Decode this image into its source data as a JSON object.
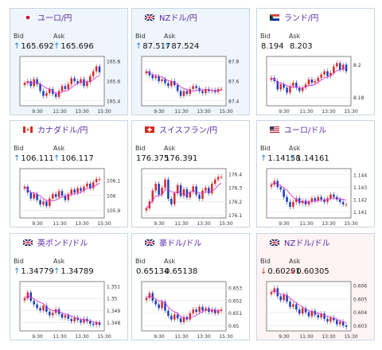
{
  "tiles": [
    {
      "flag": "jp",
      "title": "ユーロ/円",
      "bid_label": "Bid",
      "ask_label": "Ask",
      "bid": "165.692",
      "ask": "165.696",
      "arrow": "↑",
      "arrow_color": "#1a7fd4",
      "y_ticks": [
        "165.8",
        "165.6",
        "165.4"
      ],
      "x_ticks": [
        "9:30",
        "11:30",
        "13:30",
        "15:30"
      ],
      "bg": "#eef5fc",
      "chart_data": {
        "type": "candlestick",
        "ylim": [
          165.35,
          165.85
        ],
        "ticks": [
          165.8,
          165.6,
          165.4
        ],
        "close": [
          165.58,
          165.6,
          165.55,
          165.62,
          165.57,
          165.5,
          165.45,
          165.48,
          165.52,
          165.47,
          165.44,
          165.5,
          165.55,
          165.52,
          165.57,
          165.63,
          165.6,
          165.58,
          165.62,
          165.55,
          165.59,
          165.65,
          165.7,
          165.75,
          165.69
        ]
      }
    },
    {
      "flag": "nz",
      "title": "NZドル/円",
      "bid_label": "Bid",
      "ask_label": "Ask",
      "bid": "87.517",
      "ask": "87.524",
      "arrow": "↑",
      "arrow_color": "#1a7fd4",
      "y_ticks": [
        "87.8",
        "87.6",
        "87.4"
      ],
      "x_ticks": [
        "9:30",
        "11:30",
        "13:30",
        "15:30"
      ],
      "bg": "#eef5fc",
      "chart_data": {
        "type": "candlestick",
        "ylim": [
          87.35,
          87.85
        ],
        "ticks": [
          87.8,
          87.6,
          87.4
        ],
        "close": [
          87.7,
          87.66,
          87.63,
          87.65,
          87.6,
          87.62,
          87.58,
          87.55,
          87.6,
          87.56,
          87.5,
          87.45,
          87.5,
          87.47,
          87.52,
          87.55,
          87.53,
          87.5,
          87.48,
          87.52,
          87.5,
          87.51,
          87.49,
          87.52,
          87.52
        ]
      }
    },
    {
      "flag": "za",
      "title": "ランド/円",
      "bid_label": "Bid",
      "ask_label": "Ask",
      "bid": "8.194",
      "ask": "8.203",
      "arrow": "",
      "arrow_color": "#1a7fd4",
      "y_ticks": [
        "8.2",
        "8.18"
      ],
      "x_ticks": [
        "9:30",
        "11:30",
        "13:30",
        "15:30"
      ],
      "bg": "#ffffff",
      "chart_data": {
        "type": "candlestick",
        "ylim": [
          8.175,
          8.205
        ],
        "ticks": [
          8.2,
          8.18
        ],
        "close": [
          8.192,
          8.19,
          8.185,
          8.188,
          8.186,
          8.183,
          8.187,
          8.189,
          8.186,
          8.184,
          8.186,
          8.188,
          8.191,
          8.189,
          8.19,
          8.192,
          8.194,
          8.196,
          8.193,
          8.195,
          8.199,
          8.201,
          8.197,
          8.2,
          8.196
        ]
      }
    },
    {
      "flag": "ca",
      "title": "カナダドル/円",
      "bid_label": "Bid",
      "ask_label": "Ask",
      "bid": "106.111",
      "ask": "106.117",
      "arrow": "↑",
      "arrow_color": "#1a7fd4",
      "y_ticks": [
        "106.1",
        "106",
        "105.9"
      ],
      "x_ticks": [
        "9:30",
        "11:30",
        "13:30",
        "15:30"
      ],
      "bg": "#ffffff",
      "chart_data": {
        "type": "candlestick",
        "ylim": [
          105.85,
          106.18
        ],
        "ticks": [
          106.1,
          106.0,
          105.9
        ],
        "close": [
          106.06,
          106.02,
          105.98,
          106.01,
          105.97,
          105.94,
          105.96,
          105.93,
          105.98,
          106.01,
          105.99,
          106.03,
          106.0,
          105.97,
          106.01,
          106.04,
          106.02,
          106.05,
          106.03,
          106.06,
          106.08,
          106.05,
          106.09,
          106.11,
          106.11
        ]
      }
    },
    {
      "flag": "ch",
      "title": "スイスフラン/円",
      "bid_label": "Bid",
      "ask_label": "Ask",
      "bid": "176.375",
      "ask": "176.391",
      "arrow": "",
      "arrow_color": "#1a7fd4",
      "y_ticks": [
        "176.4",
        "176.3",
        "176.2",
        "176.1"
      ],
      "x_ticks": [
        "9:30",
        "11:30",
        "13:30",
        "15:30"
      ],
      "bg": "#ffffff",
      "chart_data": {
        "type": "candlestick",
        "ylim": [
          176.08,
          176.44
        ],
        "ticks": [
          176.4,
          176.3,
          176.2,
          176.1
        ],
        "close": [
          176.15,
          176.2,
          176.28,
          176.33,
          176.25,
          176.3,
          176.36,
          176.22,
          176.18,
          176.26,
          176.32,
          176.24,
          176.29,
          176.23,
          176.27,
          176.31,
          176.25,
          176.22,
          176.28,
          176.3,
          176.26,
          176.33,
          176.36,
          176.38,
          176.38
        ]
      }
    },
    {
      "flag": "us",
      "title": "ユーロ/ドル",
      "bid_label": "Bid",
      "ask_label": "Ask",
      "bid": "1.14158",
      "ask": "1.14161",
      "arrow": "↑",
      "arrow_color": "#1a7fd4",
      "y_ticks": [
        "1.144",
        "1.143",
        "1.142",
        "1.141"
      ],
      "x_ticks": [
        "9:30",
        "11:30",
        "13:30",
        "15:30"
      ],
      "bg": "#ffffff",
      "chart_data": {
        "type": "candlestick",
        "ylim": [
          1.1405,
          1.1445
        ],
        "ticks": [
          1.144,
          1.143,
          1.142,
          1.141
        ],
        "close": [
          1.1432,
          1.1435,
          1.143,
          1.1428,
          1.1422,
          1.1418,
          1.1414,
          1.1418,
          1.1421,
          1.1417,
          1.1419,
          1.1416,
          1.1418,
          1.1421,
          1.1419,
          1.1422,
          1.142,
          1.1418,
          1.1421,
          1.1424,
          1.1422,
          1.142,
          1.1418,
          1.1416,
          1.1416
        ]
      }
    },
    {
      "flag": "gb",
      "title": "英ポンド/ドル",
      "bid_label": "Bid",
      "ask_label": "Ask",
      "bid": "1.34779",
      "ask": "1.34789",
      "arrow": "↑",
      "arrow_color": "#1a7fd4",
      "y_ticks": [
        "1.351",
        "1.35",
        "1.349",
        "1.348"
      ],
      "x_ticks": [
        "9:30",
        "11:30",
        "13:30",
        "15:30"
      ],
      "bg": "#ffffff",
      "chart_data": {
        "type": "candlestick",
        "ylim": [
          1.3473,
          1.3514
        ],
        "ticks": [
          1.351,
          1.35,
          1.349,
          1.348
        ],
        "close": [
          1.35,
          1.3505,
          1.3498,
          1.3495,
          1.3492,
          1.349,
          1.3494,
          1.3489,
          1.3486,
          1.3488,
          1.3491,
          1.3487,
          1.3484,
          1.3486,
          1.3483,
          1.3481,
          1.3484,
          1.3482,
          1.348,
          1.3483,
          1.3481,
          1.3479,
          1.3478,
          1.348,
          1.3478
        ]
      }
    },
    {
      "flag": "au",
      "title": "豪ドル/ドル",
      "bid_label": "Bid",
      "ask_label": "Ask",
      "bid": "0.65134",
      "ask": "0.65138",
      "arrow": "",
      "arrow_color": "#1a7fd4",
      "y_ticks": [
        "0.653",
        "0.652",
        "0.651",
        "0.65"
      ],
      "x_ticks": [
        "9:30",
        "11:30",
        "13:30",
        "15:30"
      ],
      "bg": "#ffffff",
      "chart_data": {
        "type": "candlestick",
        "ylim": [
          0.6496,
          0.6535
        ],
        "ticks": [
          0.653,
          0.652,
          0.651,
          0.65
        ],
        "close": [
          0.6522,
          0.6526,
          0.652,
          0.6517,
          0.6514,
          0.6519,
          0.6512,
          0.6508,
          0.6505,
          0.6509,
          0.6506,
          0.6503,
          0.6507,
          0.6505,
          0.651,
          0.6513,
          0.6511,
          0.6515,
          0.6512,
          0.6514,
          0.6511,
          0.6513,
          0.651,
          0.6512,
          0.6513
        ]
      }
    },
    {
      "flag": "nz",
      "title": "NZドル/ドル",
      "bid_label": "Bid",
      "ask_label": "Ask",
      "bid": "0.60291",
      "ask": "0.60305",
      "arrow": "↓",
      "arrow_color": "#d43a3a",
      "y_ticks": [
        "0.606",
        "0.605",
        "0.604",
        "0.603"
      ],
      "x_ticks": [
        "9:30",
        "11:30",
        "13:30",
        "15:30"
      ],
      "bg": "#fff4f4",
      "chart_data": {
        "type": "candlestick",
        "ylim": [
          0.6026,
          0.6063
        ],
        "ticks": [
          0.606,
          0.605,
          0.604,
          0.603
        ],
        "close": [
          0.6055,
          0.6058,
          0.6052,
          0.6049,
          0.6053,
          0.6048,
          0.6044,
          0.6046,
          0.6042,
          0.6039,
          0.6043,
          0.604,
          0.6037,
          0.6041,
          0.6038,
          0.6036,
          0.6039,
          0.6035,
          0.6033,
          0.6036,
          0.6034,
          0.6031,
          0.6033,
          0.603,
          0.6029
        ]
      }
    }
  ]
}
